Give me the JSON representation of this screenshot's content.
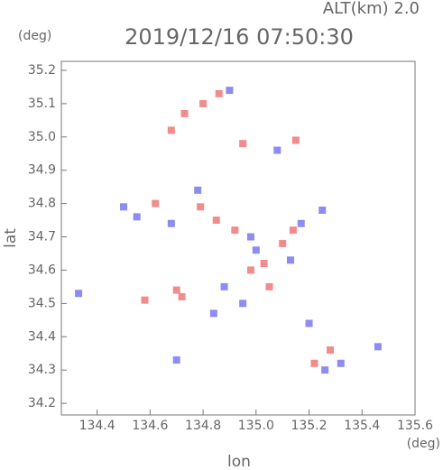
{
  "chart_data": {
    "type": "scatter",
    "title": "2019/12/16 07:50:30",
    "annotations": [
      "ALT(km) 2.0"
    ],
    "x_label": "lon",
    "y_label": "lat",
    "x_unit": "(deg)",
    "y_unit": "(deg)",
    "xlim": [
      134.265,
      135.6
    ],
    "ylim": [
      34.165,
      35.227
    ],
    "xticks": [
      134.4,
      134.6,
      134.8,
      {
        "value": 135,
        "label": "135.0"
      },
      135.2,
      135.4,
      135.6
    ],
    "yticks": [
      34.2,
      34.3,
      34.4,
      34.5,
      34.6,
      34.7,
      34.8,
      34.9,
      {
        "value": 35,
        "label": "35.0"
      },
      35.1,
      35.2
    ],
    "series": [
      {
        "color": "#f07878",
        "x": [
          134.68,
          134.73,
          134.8,
          134.86,
          134.95,
          135.15,
          134.58,
          134.7,
          134.79,
          134.85,
          134.92,
          135.03,
          135.1,
          135.14,
          134.62,
          134.72,
          135.28,
          135.22,
          134.98,
          135.05
        ],
        "y": [
          35.02,
          35.07,
          35.1,
          35.13,
          34.98,
          34.99,
          34.51,
          34.54,
          34.79,
          34.75,
          34.72,
          34.62,
          34.68,
          34.72,
          34.8,
          34.52,
          34.36,
          34.32,
          34.6,
          34.55
        ]
      },
      {
        "color": "#7878f0",
        "x": [
          134.5,
          134.33,
          134.55,
          134.7,
          134.78,
          134.9,
          135.08,
          135.13,
          135.17,
          135.25,
          135.32,
          135.46,
          134.88,
          134.95,
          135.0,
          134.68,
          134.84,
          135.2,
          135.26,
          134.98
        ],
        "y": [
          34.79,
          34.53,
          34.76,
          34.33,
          34.84,
          35.14,
          34.96,
          34.63,
          34.74,
          34.78,
          34.32,
          34.37,
          34.55,
          34.5,
          34.66,
          34.74,
          34.47,
          34.44,
          34.3,
          34.7
        ]
      }
    ]
  }
}
